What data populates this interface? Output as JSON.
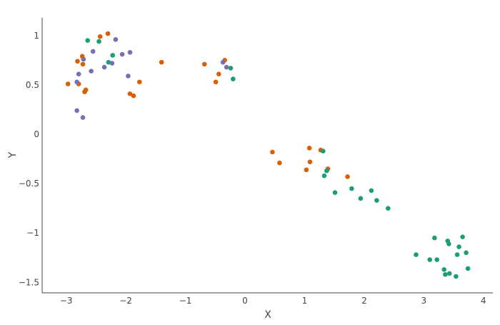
{
  "chart_data": {
    "type": "scatter",
    "title": "",
    "xlabel": "X",
    "ylabel": "Y",
    "xlim": [
      -3.4,
      4.15
    ],
    "ylim": [
      -1.6,
      1.17
    ],
    "xticks": [
      -3,
      -2,
      -1,
      0,
      1,
      2,
      3,
      4
    ],
    "xtick_labels": [
      "−3",
      "−2",
      "−1",
      "0",
      "1",
      "2",
      "3",
      "4"
    ],
    "yticks": [
      1,
      0.5,
      0,
      -0.5,
      -1,
      -1.5
    ],
    "ytick_labels": [
      "1",
      "0.5",
      "0",
      "−0.5",
      "−1",
      "−1.5"
    ],
    "grid": false,
    "legend": "none",
    "series": [
      {
        "color": "#d95f02",
        "points": [
          [
            -2.43,
            0.99
          ],
          [
            -2.3,
            1.02
          ],
          [
            -2.73,
            0.79
          ],
          [
            -2.81,
            0.74
          ],
          [
            -2.72,
            0.71
          ],
          [
            -2.97,
            0.51
          ],
          [
            -2.79,
            0.51
          ],
          [
            -2.67,
            0.45
          ],
          [
            -2.69,
            0.43
          ],
          [
            -1.4,
            0.73
          ],
          [
            -1.77,
            0.53
          ],
          [
            -1.93,
            0.41
          ],
          [
            -1.87,
            0.39
          ],
          [
            -0.68,
            0.71
          ],
          [
            -0.34,
            0.75
          ],
          [
            -0.44,
            0.61
          ],
          [
            -0.49,
            0.53
          ],
          [
            0.46,
            -0.18
          ],
          [
            1.08,
            -0.14
          ],
          [
            1.27,
            -0.16
          ],
          [
            0.58,
            -0.29
          ],
          [
            1.09,
            -0.28
          ],
          [
            1.03,
            -0.36
          ],
          [
            1.39,
            -0.35
          ],
          [
            1.72,
            -0.43
          ]
        ]
      },
      {
        "color": "#1b9e77",
        "points": [
          [
            -2.64,
            0.95
          ],
          [
            -2.45,
            0.94
          ],
          [
            -2.22,
            0.8
          ],
          [
            -2.29,
            0.73
          ],
          [
            -0.24,
            0.67
          ],
          [
            -0.2,
            0.56
          ],
          [
            1.31,
            -0.17
          ],
          [
            1.37,
            -0.37
          ],
          [
            1.33,
            -0.42
          ],
          [
            1.51,
            -0.59
          ],
          [
            1.79,
            -0.55
          ],
          [
            2.12,
            -0.57
          ],
          [
            1.94,
            -0.65
          ],
          [
            2.21,
            -0.67
          ],
          [
            2.4,
            -0.75
          ],
          [
            3.18,
            -1.05
          ],
          [
            3.4,
            -1.08
          ],
          [
            3.42,
            -1.11
          ],
          [
            3.65,
            -1.04
          ],
          [
            3.59,
            -1.14
          ],
          [
            2.87,
            -1.22
          ],
          [
            3.1,
            -1.27
          ],
          [
            3.22,
            -1.27
          ],
          [
            3.56,
            -1.22
          ],
          [
            3.71,
            -1.2
          ],
          [
            3.34,
            -1.37
          ],
          [
            3.74,
            -1.36
          ],
          [
            3.36,
            -1.42
          ],
          [
            3.43,
            -1.41
          ],
          [
            3.54,
            -1.44
          ]
        ]
      },
      {
        "color": "#7570b3",
        "points": [
          [
            -2.17,
            0.96
          ],
          [
            -2.55,
            0.84
          ],
          [
            -2.71,
            0.76
          ],
          [
            -2.06,
            0.81
          ],
          [
            -1.93,
            0.83
          ],
          [
            -2.23,
            0.72
          ],
          [
            -2.36,
            0.68
          ],
          [
            -2.58,
            0.64
          ],
          [
            -2.79,
            0.61
          ],
          [
            -2.82,
            0.53
          ],
          [
            -1.96,
            0.59
          ],
          [
            -2.82,
            0.24
          ],
          [
            -2.72,
            0.17
          ],
          [
            -0.37,
            0.73
          ],
          [
            -0.31,
            0.68
          ]
        ]
      }
    ]
  }
}
